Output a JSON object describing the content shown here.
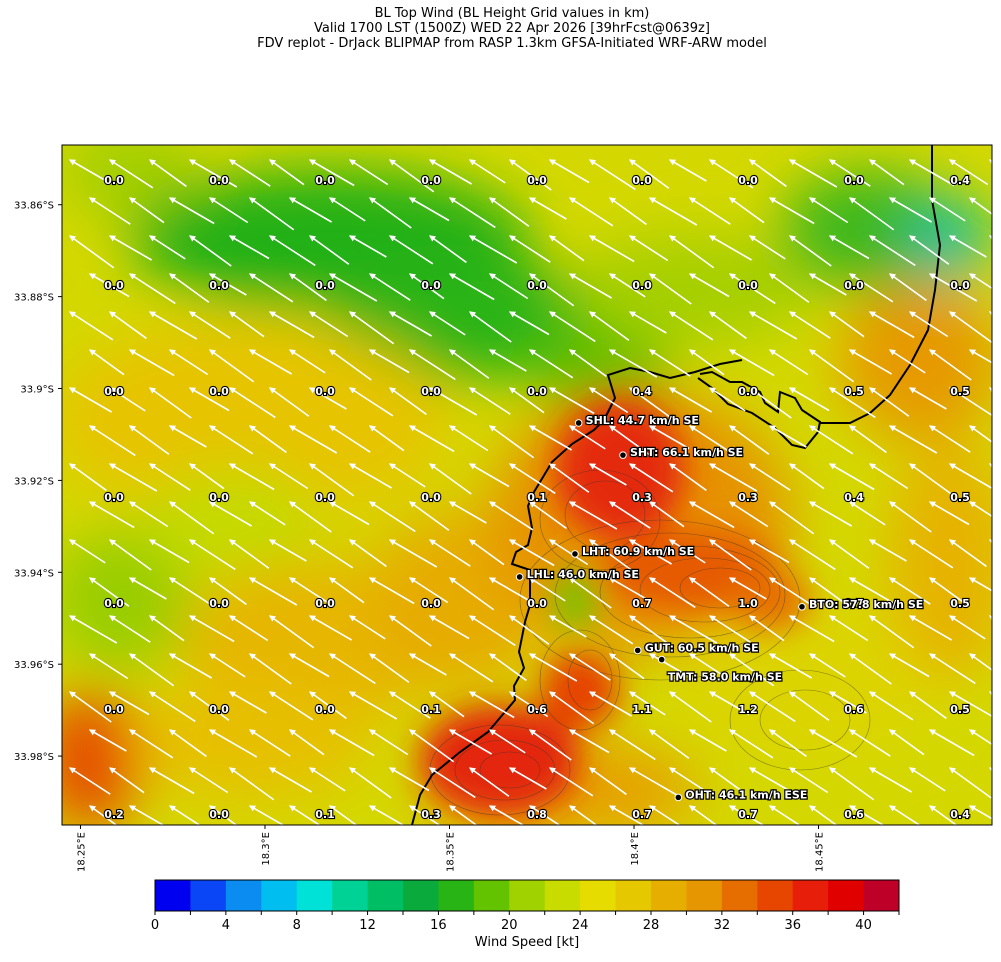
{
  "title": {
    "line1": "BL Top Wind (BL Height Grid values in km)",
    "line2": "Valid 1700 LST (1500Z) WED 22 Apr 2026 [39hrFcst@0639z]",
    "line3": "FDV replot - DrJack BLIPMAP from RASP 1.3km GFSA-Initiated WRF-ARW model"
  },
  "map": {
    "lon_range": [
      18.245,
      18.497
    ],
    "lat_range": [
      -33.995,
      -33.847
    ],
    "lat_ticks": [
      {
        "value": -33.86,
        "label": "33.86°S"
      },
      {
        "value": -33.88,
        "label": "33.88°S"
      },
      {
        "value": -33.9,
        "label": "33.9°S"
      },
      {
        "value": -33.92,
        "label": "33.92°S"
      },
      {
        "value": -33.94,
        "label": "33.94°S"
      },
      {
        "value": -33.96,
        "label": "33.96°S"
      },
      {
        "value": -33.98,
        "label": "33.98°S"
      }
    ],
    "lon_ticks": [
      {
        "value": 18.25,
        "label": "18.25°E"
      },
      {
        "value": 18.3,
        "label": "18.3°E"
      },
      {
        "value": 18.35,
        "label": "18.35°E"
      },
      {
        "value": 18.4,
        "label": "18.4°E"
      },
      {
        "value": 18.45,
        "label": "18.45°E"
      }
    ],
    "bl_grid": {
      "rows": [
        [
          "0.0",
          "0.0",
          "0.0",
          "0.0",
          "0.0",
          "0.0",
          "0.0",
          "0.0",
          "0.4"
        ],
        [
          "0.0",
          "0.0",
          "0.0",
          "0.0",
          "0.0",
          "0.0",
          "0.0",
          "0.0",
          "0.0"
        ],
        [
          "0.0",
          "0.0",
          "0.0",
          "0.0",
          "0.0",
          "0.4",
          "0.0",
          "0.5",
          "0.5"
        ],
        [
          "0.0",
          "0.0",
          "0.0",
          "0.0",
          "0.1",
          "0.3",
          "0.3",
          "0.4",
          "0.5"
        ],
        [
          "0.0",
          "0.0",
          "0.0",
          "0.0",
          "0.0",
          "0.7",
          "1.0",
          "0.7",
          "0.5"
        ],
        [
          "0.0",
          "0.0",
          "0.0",
          "0.1",
          "0.6",
          "1.1",
          "1.2",
          "0.6",
          "0.5"
        ],
        [
          "0.2",
          "0.0",
          "0.1",
          "0.3",
          "0.8",
          "0.7",
          "0.7",
          "0.6",
          "0.4"
        ]
      ]
    },
    "stations": [
      {
        "code": "SHL",
        "label": "SHL: 44.7 km/h SE",
        "lon": 18.385,
        "lat": -33.9075
      },
      {
        "code": "SHT",
        "label": "SHT: 66.1 km/h SE",
        "lon": 18.397,
        "lat": -33.9145
      },
      {
        "code": "LHT",
        "label": "LHT: 60.9 km/h SE",
        "lon": 18.384,
        "lat": -33.936
      },
      {
        "code": "LHL",
        "label": "LHL: 46.0 km/h SE",
        "lon": 18.369,
        "lat": -33.941
      },
      {
        "code": "BTO",
        "label": "BTO: 57.8 km/h SE",
        "lon": 18.4455,
        "lat": -33.9475
      },
      {
        "code": "GUT",
        "label": "GUT: 60.5 km/h SE",
        "lon": 18.401,
        "lat": -33.957
      },
      {
        "code": "TMT",
        "label": "TMT: 58.0 km/h SE",
        "lon": 18.4075,
        "lat": -33.959
      },
      {
        "code": "OHT",
        "label": "OHT: 46.1 km/h ESE",
        "lon": 18.412,
        "lat": -33.989
      }
    ]
  },
  "colorbar": {
    "min": 0,
    "max": 42,
    "step": 2,
    "ticks": [
      "0",
      "4",
      "8",
      "12",
      "16",
      "20",
      "24",
      "28",
      "32",
      "36",
      "40"
    ],
    "label": "Wind Speed [kt]",
    "colors": [
      "#0000f0",
      "#0a46f5",
      "#0a8cf0",
      "#00bef0",
      "#00e1d7",
      "#00d296",
      "#00be64",
      "#0aaa3c",
      "#28b414",
      "#64c300",
      "#a0d200",
      "#c8dc00",
      "#e6dc00",
      "#e6c800",
      "#e6af00",
      "#e69600",
      "#e66e00",
      "#e64600",
      "#e61e0a",
      "#e10000",
      "#be0028"
    ]
  }
}
